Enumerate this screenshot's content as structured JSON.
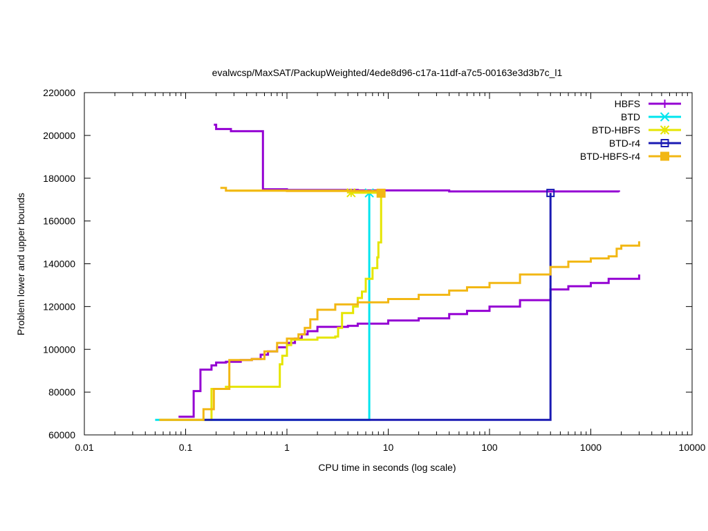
{
  "chart_data": {
    "type": "line",
    "title": "evalwcsp/MaxSAT/PackupWeighted/4ede8d96-c17a-11df-a7c5-00163e3d3b7c_l1",
    "xlabel": "CPU time in seconds (log scale)",
    "ylabel": "Problem lower and upper bounds",
    "xscale": "log",
    "xlim": [
      0.01,
      10000
    ],
    "ylim": [
      60000,
      220000
    ],
    "x_ticks": [
      0.01,
      0.1,
      1,
      10,
      100,
      1000,
      10000
    ],
    "x_tick_labels": [
      "0.01",
      "0.1",
      "1",
      "10",
      "100",
      "1000",
      "10000"
    ],
    "y_ticks": [
      60000,
      80000,
      100000,
      120000,
      140000,
      160000,
      180000,
      200000,
      220000
    ],
    "y_tick_labels": [
      "60000",
      "80000",
      "100000",
      "120000",
      "140000",
      "160000",
      "180000",
      "200000",
      "220000"
    ],
    "grid": false,
    "legend_position": "top-right",
    "series": [
      {
        "name": "HBFS",
        "color": "#9400d3",
        "marker": "plus",
        "upper": [
          [
            0.19,
            205000
          ],
          [
            0.2,
            203000
          ],
          [
            0.28,
            202000
          ],
          [
            0.58,
            202000
          ],
          [
            0.58,
            174800
          ],
          [
            1,
            174500
          ],
          [
            5,
            174300
          ],
          [
            40,
            173800
          ],
          [
            1900,
            173600
          ]
        ],
        "lower": [
          [
            0.085,
            68500
          ],
          [
            0.12,
            68500
          ],
          [
            0.12,
            80500
          ],
          [
            0.14,
            80500
          ],
          [
            0.14,
            90500
          ],
          [
            0.18,
            90500
          ],
          [
            0.18,
            92500
          ],
          [
            0.2,
            92500
          ],
          [
            0.2,
            93800
          ],
          [
            0.25,
            94200
          ],
          [
            0.35,
            95000
          ],
          [
            0.45,
            95500
          ],
          [
            0.55,
            97500
          ],
          [
            0.65,
            99000
          ],
          [
            0.8,
            101000
          ],
          [
            1.0,
            103000
          ],
          [
            1.2,
            105000
          ],
          [
            1.4,
            107000
          ],
          [
            1.6,
            108500
          ],
          [
            2.0,
            110500
          ],
          [
            4,
            111000
          ],
          [
            5,
            112000
          ],
          [
            10,
            113500
          ],
          [
            20,
            114500
          ],
          [
            40,
            116500
          ],
          [
            60,
            118000
          ],
          [
            100,
            120000
          ],
          [
            200,
            123000
          ],
          [
            400,
            128000
          ],
          [
            600,
            129500
          ],
          [
            1000,
            131000
          ],
          [
            1500,
            133000
          ],
          [
            3000,
            135000
          ]
        ]
      },
      {
        "name": "BTD",
        "color": "#00e5ee",
        "marker": "x",
        "upper": [
          [
            6.5,
            173100
          ]
        ],
        "lower": [
          [
            0.05,
            67000
          ],
          [
            6.5,
            67000
          ],
          [
            6.5,
            173100
          ]
        ]
      },
      {
        "name": "BTD-HBFS",
        "color": "#e5e500",
        "marker": "star",
        "upper": [
          [
            0.27,
            174200
          ],
          [
            4.3,
            173200
          ],
          [
            8.5,
            173000
          ]
        ],
        "lower": [
          [
            0.055,
            67000
          ],
          [
            0.18,
            67000
          ],
          [
            0.18,
            81500
          ],
          [
            0.25,
            82500
          ],
          [
            0.85,
            82500
          ],
          [
            0.85,
            93000
          ],
          [
            0.9,
            97000
          ],
          [
            1.0,
            102000
          ],
          [
            1.1,
            104500
          ],
          [
            2.0,
            105500
          ],
          [
            3.0,
            106000
          ],
          [
            3.2,
            110000
          ],
          [
            3.5,
            117000
          ],
          [
            4.5,
            120000
          ],
          [
            5.0,
            124000
          ],
          [
            5.5,
            127000
          ],
          [
            6.0,
            133000
          ],
          [
            7.0,
            138000
          ],
          [
            7.8,
            143000
          ],
          [
            8.0,
            150000
          ],
          [
            8.5,
            156000
          ],
          [
            8.5,
            173000
          ]
        ]
      },
      {
        "name": "BTD-r4",
        "color": "#1a1ab3",
        "marker": "box",
        "upper": [
          [
            400,
            173100
          ]
        ],
        "lower": [
          [
            0.15,
            67000
          ],
          [
            400,
            67000
          ],
          [
            400,
            173100
          ]
        ]
      },
      {
        "name": "BTD-HBFS-r4",
        "color": "#f2b713",
        "marker": "filled-box",
        "upper": [
          [
            0.22,
            175500
          ],
          [
            0.25,
            174200
          ],
          [
            1,
            174000
          ],
          [
            8.5,
            173000
          ]
        ],
        "lower": [
          [
            0.055,
            67000
          ],
          [
            0.15,
            67000
          ],
          [
            0.15,
            72000
          ],
          [
            0.19,
            72000
          ],
          [
            0.19,
            81500
          ],
          [
            0.27,
            81500
          ],
          [
            0.27,
            95000
          ],
          [
            0.45,
            95500
          ],
          [
            0.6,
            99000
          ],
          [
            0.8,
            103000
          ],
          [
            1.0,
            105000
          ],
          [
            1.3,
            107000
          ],
          [
            1.5,
            110000
          ],
          [
            1.7,
            114000
          ],
          [
            2.0,
            118500
          ],
          [
            3.0,
            121000
          ],
          [
            5.0,
            122000
          ],
          [
            10,
            123500
          ],
          [
            20,
            125500
          ],
          [
            40,
            127500
          ],
          [
            60,
            129000
          ],
          [
            100,
            131000
          ],
          [
            200,
            135000
          ],
          [
            400,
            138500
          ],
          [
            600,
            141000
          ],
          [
            1000,
            142500
          ],
          [
            1500,
            143500
          ],
          [
            1800,
            147000
          ],
          [
            2000,
            148500
          ],
          [
            3000,
            150500
          ]
        ]
      }
    ]
  }
}
